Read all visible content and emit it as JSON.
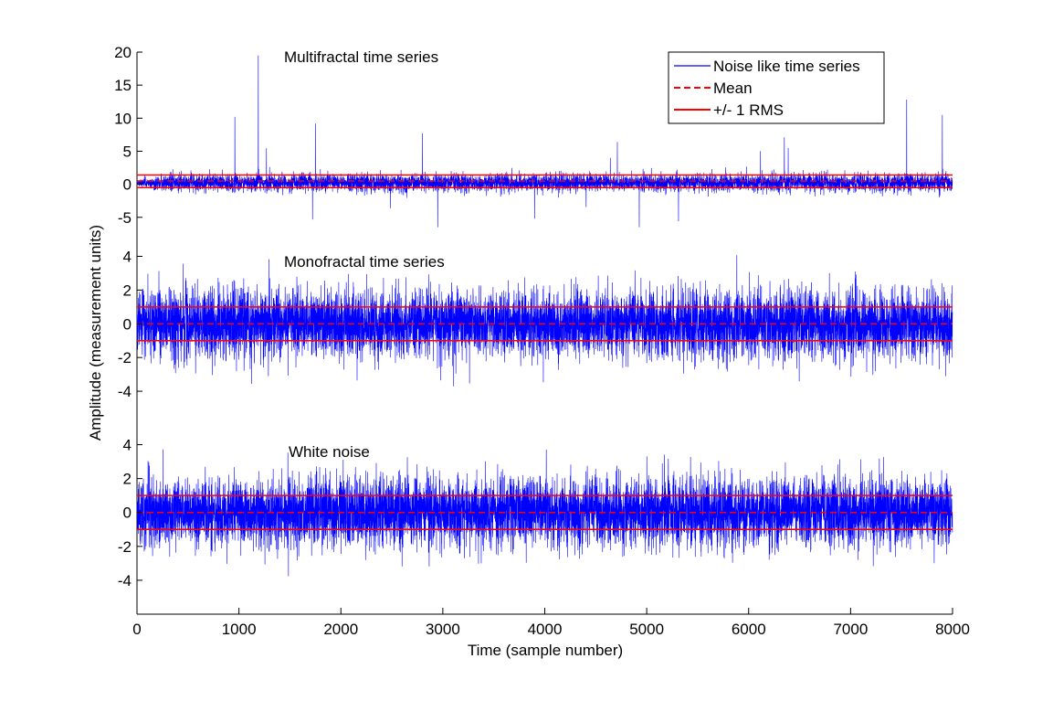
{
  "chart_data": {
    "type": "line",
    "xlabel": "Time (sample number)",
    "ylabel": "Amplitude (measurement units)",
    "xlim": [
      0,
      8000
    ],
    "x_ticks": [
      "0",
      "1000",
      "2000",
      "3000",
      "4000",
      "5000",
      "6000",
      "7000",
      "8000"
    ],
    "grid": false,
    "legend": {
      "placement": "top-right",
      "entries": [
        {
          "label": "Noise like time series",
          "color": "#0000ff",
          "style": "solid"
        },
        {
          "label": "Mean",
          "color": "#ff0000",
          "style": "dashed"
        },
        {
          "label": "+/- 1 RMS",
          "color": "#ff0000",
          "style": "solid"
        }
      ]
    },
    "panels": [
      {
        "title": "Multifractal time series",
        "ylim": [
          -6,
          20
        ],
        "y_ticks": [
          "20",
          "15",
          "10",
          "5",
          "0",
          "-5"
        ],
        "mean": 0.5,
        "rms_upper": 1.4,
        "rms_lower": -0.5,
        "n_samples": 8000,
        "approx_range": [
          -6.5,
          19.5
        ],
        "peaks": [
          {
            "x": 960,
            "y": 10.2
          },
          {
            "x": 1190,
            "y": 19.5
          },
          {
            "x": 1750,
            "y": 9.2
          },
          {
            "x": 2800,
            "y": 7.7
          },
          {
            "x": 2950,
            "y": -6.5
          },
          {
            "x": 3900,
            "y": -5.2
          },
          {
            "x": 6350,
            "y": 7.1
          },
          {
            "x": 7550,
            "y": 12.8
          },
          {
            "x": 7900,
            "y": 10.5
          }
        ]
      },
      {
        "title": "Monofractal time series",
        "ylim": [
          -6,
          5
        ],
        "y_ticks": [
          "4",
          "2",
          "0",
          "-2",
          "-4"
        ],
        "mean": 0.0,
        "rms_upper": 1.0,
        "rms_lower": -1.0,
        "n_samples": 8000,
        "approx_range": [
          -4.3,
          4.3
        ]
      },
      {
        "title": "White noise",
        "ylim": [
          -6,
          5
        ],
        "y_ticks": [
          "4",
          "2",
          "0",
          "-2",
          "-4"
        ],
        "mean": 0.0,
        "rms_upper": 1.0,
        "rms_lower": -1.0,
        "n_samples": 8000,
        "approx_range": [
          -3.5,
          4.6
        ]
      }
    ]
  },
  "colors": {
    "series": "#0000ff",
    "mean": "#ff0000",
    "rms": "#ff0000",
    "axis": "#000000",
    "background": "#ffffff"
  }
}
